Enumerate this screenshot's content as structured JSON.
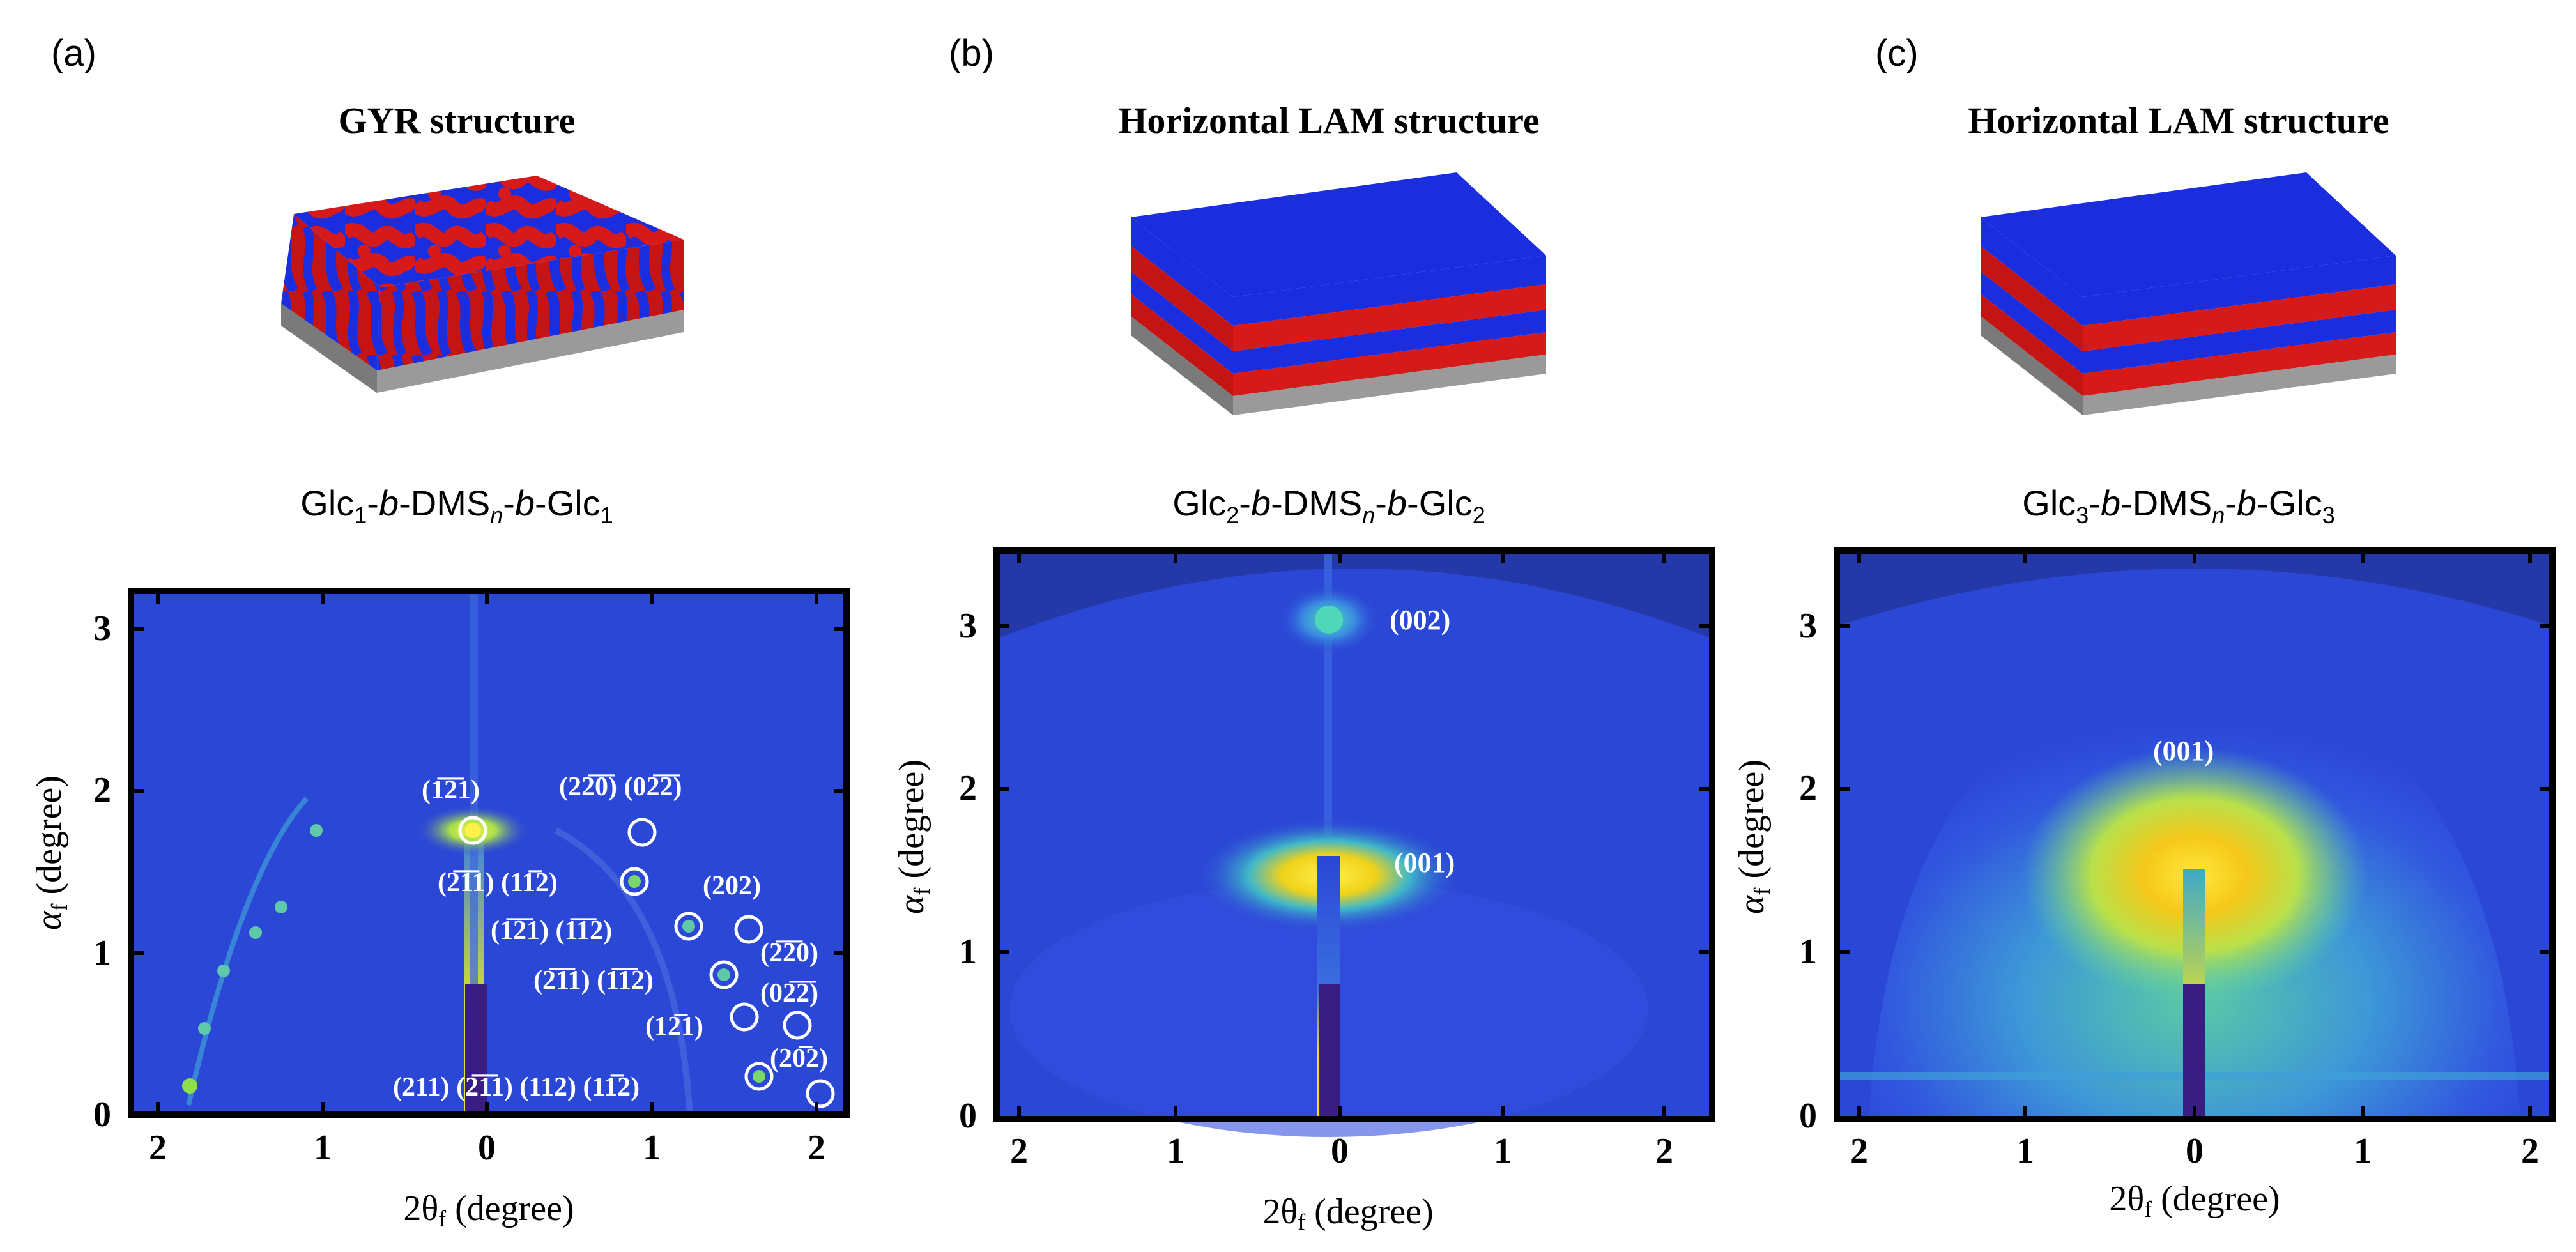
{
  "panels": [
    {
      "label": "(a)",
      "title": "GYR structure",
      "formula": {
        "a": "Glc",
        "s1": "1",
        "b": "-",
        "bi": "b",
        "c": "-DMS",
        "n": "n",
        "d": "-",
        "di": "b",
        "e": "-Glc",
        "s2": "1"
      },
      "yticks": [
        "3",
        "2",
        "1",
        "0"
      ],
      "xticks": [
        "2",
        "1",
        "0",
        "1",
        "2"
      ],
      "peaks": [
        "(1̅2̅1)",
        "(22̅0̅) (02̅2̅)",
        "(2̅1̅1) (11̅2)",
        "(202)",
        "(1̅2̅1) (1̅1̅2)",
        "(2̅2̅0)",
        "(2̅1̅1) (1̅1̅2)",
        "(02̅2̅)",
        "(12̅1)",
        "(20̅2)",
        "(211) (2̅1̅1) (112) (11̅2)"
      ]
    },
    {
      "label": "(b)",
      "title": "Horizontal LAM structure",
      "formula": {
        "a": "Glc",
        "s1": "2",
        "b": "-",
        "bi": "b",
        "c": "-DMS",
        "n": "n",
        "d": "-",
        "di": "b",
        "e": "-Glc",
        "s2": "2"
      },
      "yticks": [
        "3",
        "2",
        "1",
        "0"
      ],
      "xticks": [
        "2",
        "1",
        "0",
        "1",
        "2"
      ],
      "peaks": [
        "(002)",
        "(001)"
      ]
    },
    {
      "label": "(c)",
      "title": "Horizontal LAM structure",
      "formula": {
        "a": "Glc",
        "s1": "3",
        "b": "-",
        "bi": "b",
        "c": "-DMS",
        "n": "n",
        "d": "-",
        "di": "b",
        "e": "-Glc",
        "s2": "3"
      },
      "yticks": [
        "3",
        "2",
        "1",
        "0"
      ],
      "xticks": [
        "2",
        "1",
        "0",
        "1",
        "2"
      ],
      "peaks": [
        "(001)"
      ]
    }
  ],
  "axis": {
    "ylabel_sym": "α",
    "ylabel_sub": "f",
    "ylabel_unit": " (degree)",
    "xlabel_pre": "2θ",
    "xlabel_sub": "f",
    "xlabel_unit": " (degree)"
  },
  "colors": {
    "blue": "#1a2ee0",
    "red": "#d61a1a",
    "gray": "#9a9a9a",
    "plot_bg": "#2b47d6",
    "yellow": "#f0e21a"
  }
}
